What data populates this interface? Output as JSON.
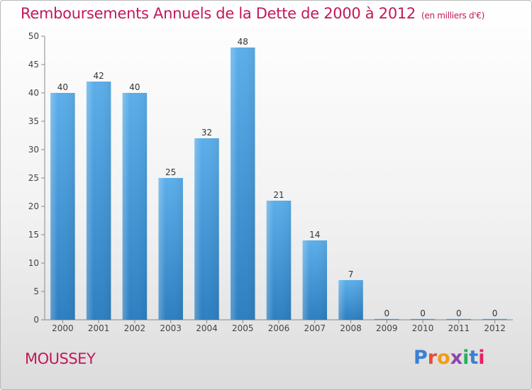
{
  "header": {
    "title": "Remboursements Annuels de la Dette de 2000 à 2012",
    "unit": "(en milliers d'€)"
  },
  "footer": {
    "commune": "MOUSSEY",
    "logo_text": "Proxiti",
    "logo_colors": [
      "#3a7fd5",
      "#e74c3c",
      "#f39c12",
      "#8e44ad",
      "#27ae60",
      "#3a7fd5",
      "#e91e63"
    ]
  },
  "chart_data": {
    "type": "bar",
    "categories": [
      "2000",
      "2001",
      "2002",
      "2003",
      "2004",
      "2005",
      "2006",
      "2007",
      "2008",
      "2009",
      "2010",
      "2011",
      "2012"
    ],
    "values": [
      40,
      42,
      40,
      25,
      32,
      48,
      21,
      14,
      7,
      0,
      0,
      0,
      0
    ],
    "title": "Remboursements Annuels de la Dette de 2000 à 2012",
    "xlabel": "",
    "ylabel": "",
    "ylim": [
      0,
      50
    ],
    "yticks": [
      0,
      5,
      10,
      15,
      20,
      25,
      30,
      35,
      40,
      45,
      50
    ],
    "grid": false,
    "bar_color": "#4a9be0"
  }
}
